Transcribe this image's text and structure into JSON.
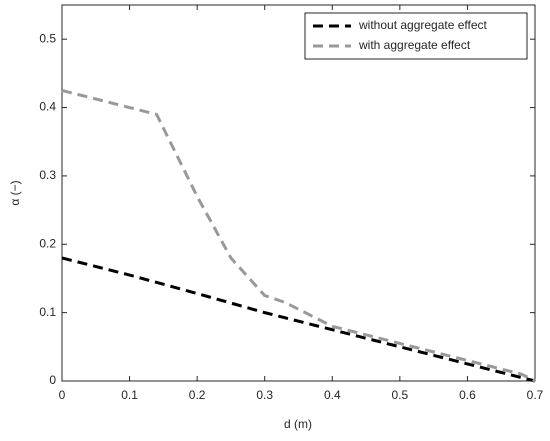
{
  "chart_data": {
    "type": "line",
    "xlabel": "d (m)",
    "ylabel": "α (−)",
    "xlim": [
      0,
      0.7
    ],
    "ylim": [
      0,
      0.55
    ],
    "xticks": [
      0,
      0.1,
      0.2,
      0.3,
      0.4,
      0.5,
      0.6,
      0.7
    ],
    "yticks": [
      0,
      0.1,
      0.2,
      0.3,
      0.4,
      0.5
    ],
    "legend": "top-right",
    "series": [
      {
        "name": "without aggregate effect",
        "color": "#000000",
        "x": [
          0,
          0.1,
          0.2,
          0.3,
          0.4,
          0.5,
          0.6,
          0.7
        ],
        "values": [
          0.18,
          0.155,
          0.128,
          0.1,
          0.075,
          0.05,
          0.025,
          0
        ]
      },
      {
        "name": "with aggregate effect",
        "color": "#999999",
        "x": [
          0,
          0.14,
          0.2,
          0.25,
          0.3,
          0.33,
          0.37,
          0.4,
          0.5,
          0.6,
          0.68,
          0.7
        ],
        "values": [
          0.425,
          0.39,
          0.27,
          0.18,
          0.125,
          0.115,
          0.095,
          0.08,
          0.055,
          0.03,
          0.01,
          0
        ]
      }
    ]
  }
}
